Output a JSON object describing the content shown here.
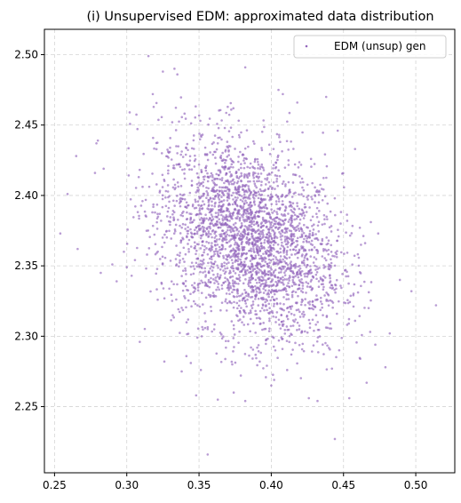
{
  "chart_data": {
    "type": "scatter",
    "title": "(i) Unsupervised EDM: approximated data distribution",
    "xlabel": "",
    "ylabel": "",
    "xlim": [
      0.243,
      0.527
    ],
    "ylim": [
      2.203,
      2.518
    ],
    "xticks": [
      0.25,
      0.3,
      0.35,
      0.4,
      0.45,
      0.5
    ],
    "xtick_labels": [
      "0.25",
      "0.30",
      "0.35",
      "0.40",
      "0.45",
      "0.50"
    ],
    "yticks": [
      2.25,
      2.3,
      2.35,
      2.4,
      2.45,
      2.5
    ],
    "ytick_labels": [
      "2.25",
      "2.30",
      "2.35",
      "2.40",
      "2.45",
      "2.50"
    ],
    "grid": true,
    "legend_position": "upper-right",
    "series": [
      {
        "name": "EDM (unsup) gen",
        "color": "#9467bd",
        "distribution": {
          "kind": "correlated-gaussian",
          "count": 3000,
          "x_mean": 0.385,
          "x_std": 0.032,
          "y_mean": 2.368,
          "y_std": 0.036,
          "correlation": -0.3
        },
        "points": [
          [
            0.254,
            2.373
          ],
          [
            0.259,
            2.401
          ],
          [
            0.265,
            2.428
          ],
          [
            0.266,
            2.362
          ],
          [
            0.278,
            2.416
          ],
          [
            0.279,
            2.437
          ],
          [
            0.28,
            2.439
          ],
          [
            0.282,
            2.345
          ],
          [
            0.284,
            2.419
          ],
          [
            0.29,
            2.351
          ],
          [
            0.293,
            2.339
          ],
          [
            0.298,
            2.36
          ],
          [
            0.3,
            2.349
          ],
          [
            0.302,
            2.459
          ],
          [
            0.309,
            2.296
          ],
          [
            0.315,
            2.499
          ],
          [
            0.318,
            2.472
          ],
          [
            0.325,
            2.488
          ],
          [
            0.326,
            2.282
          ],
          [
            0.333,
            2.49
          ],
          [
            0.335,
            2.486
          ],
          [
            0.338,
            2.275
          ],
          [
            0.348,
            2.258
          ],
          [
            0.356,
            2.216
          ],
          [
            0.363,
            2.255
          ],
          [
            0.373,
            2.28
          ],
          [
            0.374,
            2.26
          ],
          [
            0.382,
            2.254
          ],
          [
            0.382,
            2.491
          ],
          [
            0.392,
            2.282
          ],
          [
            0.4,
            2.265
          ],
          [
            0.402,
            2.269
          ],
          [
            0.405,
            2.475
          ],
          [
            0.408,
            2.472
          ],
          [
            0.411,
            2.276
          ],
          [
            0.418,
            2.466
          ],
          [
            0.426,
            2.256
          ],
          [
            0.432,
            2.254
          ],
          [
            0.438,
            2.47
          ],
          [
            0.442,
            2.277
          ],
          [
            0.444,
            2.227
          ],
          [
            0.446,
            2.446
          ],
          [
            0.447,
            2.29
          ],
          [
            0.448,
            2.38
          ],
          [
            0.454,
            2.256
          ],
          [
            0.458,
            2.433
          ],
          [
            0.466,
            2.267
          ],
          [
            0.472,
            2.294
          ],
          [
            0.474,
            2.373
          ],
          [
            0.479,
            2.278
          ],
          [
            0.482,
            2.302
          ],
          [
            0.489,
            2.34
          ],
          [
            0.497,
            2.332
          ],
          [
            0.514,
            2.322
          ]
        ]
      }
    ]
  }
}
